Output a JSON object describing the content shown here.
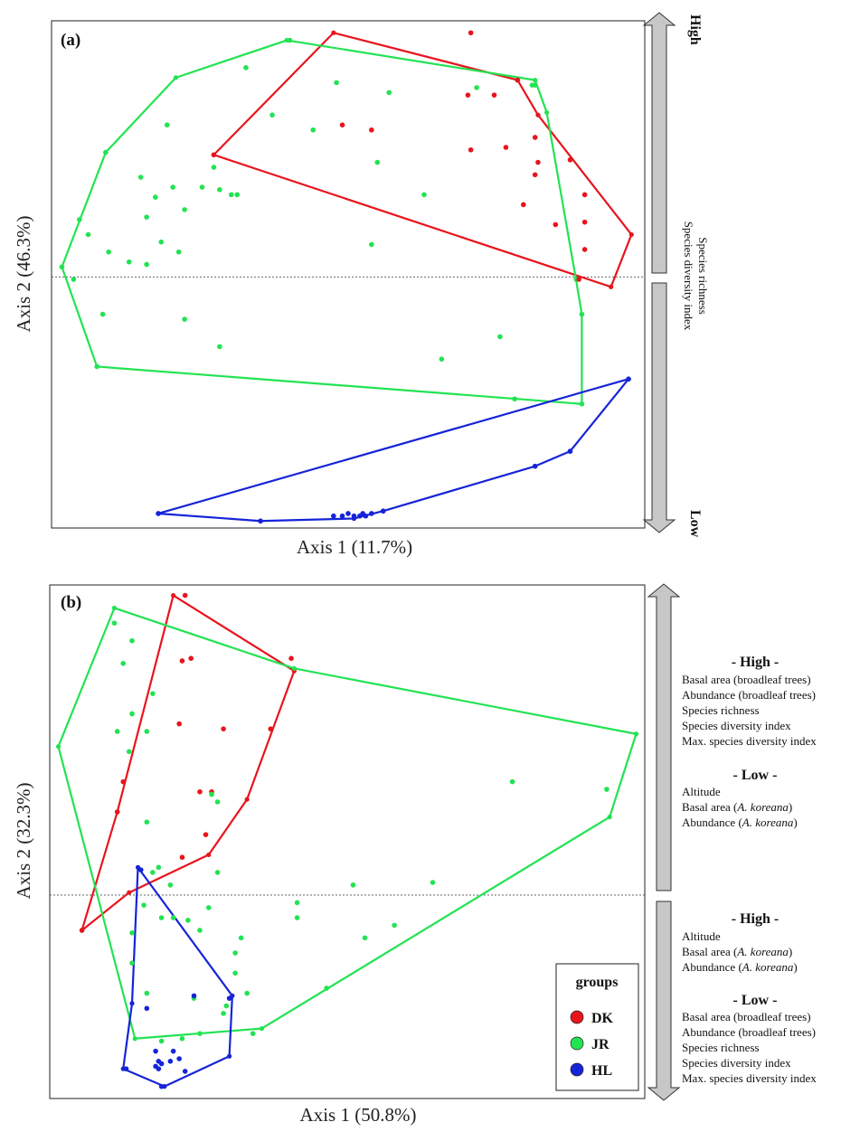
{
  "chart_data": [
    {
      "type": "scatter",
      "panel_label": "(a)",
      "xlabel": "Axis 1 (11.7%)",
      "ylabel": "Axis 2 (46.3%)",
      "xlim": [
        0,
        100
      ],
      "ylim": [
        0,
        100
      ],
      "y_reference_line": 49.5,
      "grid": false,
      "side_panel": {
        "top_label": "High",
        "bottom_label": "Low",
        "text_lines": [
          "Species richness",
          "Species diversity index"
        ]
      },
      "groups": [
        {
          "name": "DK",
          "color": "#e8141c",
          "points": [
            [
              71,
              98.5
            ],
            [
              79,
              89
            ],
            [
              82,
              77.5
            ],
            [
              85.5,
              60
            ],
            [
              89.5,
              49
            ],
            [
              71,
              75
            ],
            [
              77,
              75.5
            ],
            [
              82.5,
              72.5
            ],
            [
              88,
              73
            ],
            [
              90.5,
              60.5
            ],
            [
              82,
              70
            ],
            [
              90.5,
              66
            ],
            [
              80,
              64
            ],
            [
              90.5,
              55
            ],
            [
              49,
              80
            ],
            [
              54,
              79
            ],
            [
              75,
              86
            ],
            [
              70.5,
              86
            ],
            [
              27,
              74
            ]
          ],
          "hull": [
            [
              47.5,
              98.5
            ],
            [
              79,
              89
            ],
            [
              82.5,
              82
            ],
            [
              98.5,
              58
            ],
            [
              95,
              47.5
            ],
            [
              27,
              74
            ]
          ]
        },
        {
          "name": "JR",
          "color": "#22e352",
          "points": [
            [
              40,
              97
            ],
            [
              82,
              88
            ],
            [
              81.5,
              88
            ],
            [
              32.5,
              91.5
            ],
            [
              48,
              88.5
            ],
            [
              57,
              86.5
            ],
            [
              72,
              87.5
            ],
            [
              37,
              82
            ],
            [
              19,
              80
            ],
            [
              44,
              79
            ],
            [
              8.5,
              74.5
            ],
            [
              55,
              72.5
            ],
            [
              27,
              71.5
            ],
            [
              14.5,
              69.5
            ],
            [
              20,
              67.5
            ],
            [
              25,
              67.5
            ],
            [
              28,
              67
            ],
            [
              30,
              66
            ],
            [
              31,
              66
            ],
            [
              63,
              66
            ],
            [
              17,
              65.5
            ],
            [
              22,
              63
            ],
            [
              4,
              61
            ],
            [
              15.5,
              61.5
            ],
            [
              5.5,
              58
            ],
            [
              18,
              56.5
            ],
            [
              9,
              54.5
            ],
            [
              21,
              54.5
            ],
            [
              54,
              56
            ],
            [
              12.5,
              52.5
            ],
            [
              15.5,
              52
            ],
            [
              1,
              51.5
            ],
            [
              3,
              49
            ],
            [
              90,
              42
            ],
            [
              8,
              42
            ],
            [
              22,
              41
            ],
            [
              76,
              37.5
            ],
            [
              28,
              35.5
            ],
            [
              66,
              33
            ],
            [
              7,
              31.5
            ],
            [
              78.5,
              25
            ],
            [
              90,
              24
            ]
          ],
          "hull": [
            [
              39.5,
              97
            ],
            [
              82,
              89
            ],
            [
              84,
              82.5
            ],
            [
              89,
              49
            ],
            [
              90,
              42
            ],
            [
              90,
              24
            ],
            [
              7,
              31.5
            ],
            [
              1,
              51.5
            ],
            [
              8.5,
              74.5
            ],
            [
              20.5,
              89.5
            ]
          ]
        },
        {
          "name": "HL",
          "color": "#1624d8",
          "points": [
            [
              98,
              29
            ],
            [
              88,
              14.5
            ],
            [
              82,
              11.5
            ],
            [
              56,
              2.5
            ],
            [
              51,
              1.5
            ],
            [
              52,
              1.5
            ],
            [
              53,
              1.5
            ],
            [
              52.5,
              2
            ],
            [
              54,
              2
            ],
            [
              49,
              1.5
            ],
            [
              50,
              2
            ],
            [
              47.5,
              1.5
            ],
            [
              35,
              0.5
            ],
            [
              17.5,
              2
            ]
          ],
          "hull": [
            [
              98,
              29
            ],
            [
              88,
              14.5
            ],
            [
              82,
              11.5
            ],
            [
              56,
              2.5
            ],
            [
              51,
              1
            ],
            [
              35,
              0.5
            ],
            [
              17.5,
              2
            ]
          ]
        }
      ]
    },
    {
      "type": "scatter",
      "panel_label": "(b)",
      "xlabel": "Axis 1 (50.8%)",
      "ylabel": "Axis 2 (32.3%)",
      "xlim": [
        0,
        100
      ],
      "ylim": [
        0,
        100
      ],
      "y_reference_line": 39.5,
      "grid": false,
      "side_panel": {
        "upper_high_heading": "- High -",
        "upper_high_lines": [
          "Basal area (broadleaf trees)",
          "Abundance (broadleaf trees)",
          "Species richness",
          "Species diversity index",
          "Max. species diversity index"
        ],
        "upper_low_heading": "- Low -",
        "upper_low_lines": [
          "Altitude",
          "Basal area (A. koreana)",
          "Abundance (A. koreana)"
        ],
        "lower_high_heading": "- High -",
        "lower_high_lines": [
          "Altitude",
          "Basal area (A. koreana)",
          "Abundance (A. koreana)"
        ],
        "lower_low_heading": "- Low -",
        "lower_low_lines": [
          "Basal area (broadleaf trees)",
          "Abundance (broadleaf trees)",
          "Species richness",
          "Species diversity index",
          "Max. species diversity index"
        ]
      },
      "legend": {
        "title": "groups",
        "position": "bottom-right"
      },
      "groups": [
        {
          "name": "DK",
          "color": "#e8141c",
          "points": [
            [
              22.5,
              99
            ],
            [
              40.5,
              86.5
            ],
            [
              23.5,
              86.5
            ],
            [
              22,
              86
            ],
            [
              21.5,
              73.5
            ],
            [
              29,
              72.5
            ],
            [
              37,
              72.5
            ],
            [
              12,
              62
            ],
            [
              25,
              60
            ],
            [
              27,
              60
            ],
            [
              11,
              56
            ],
            [
              26,
              51.5
            ],
            [
              22,
              47
            ],
            [
              5,
              32.5
            ]
          ],
          "hull": [
            [
              20.5,
              99
            ],
            [
              41,
              84
            ],
            [
              33,
              58.5
            ],
            [
              26.5,
              47.5
            ],
            [
              13,
              40
            ],
            [
              5,
              32.5
            ],
            [
              11,
              56
            ]
          ]
        },
        {
          "name": "JR",
          "color": "#22e352",
          "points": [
            [
              10.5,
              93.5
            ],
            [
              13.5,
              90
            ],
            [
              12,
              85.5
            ],
            [
              17,
              79.5
            ],
            [
              13.5,
              75.5
            ],
            [
              11,
              72
            ],
            [
              16,
              72
            ],
            [
              13,
              68
            ],
            [
              78,
              62
            ],
            [
              94,
              60.5
            ],
            [
              27,
              59.5
            ],
            [
              28,
              58
            ],
            [
              16,
              54
            ],
            [
              18,
              45
            ],
            [
              17,
              44
            ],
            [
              28,
              44
            ],
            [
              20,
              41.5
            ],
            [
              51,
              41.5
            ],
            [
              64.5,
              42
            ],
            [
              41.5,
              38
            ],
            [
              15.5,
              37.5
            ],
            [
              20.5,
              35
            ],
            [
              23,
              34.5
            ],
            [
              26.5,
              37
            ],
            [
              25,
              32.5
            ],
            [
              18.5,
              35
            ],
            [
              41.5,
              35
            ],
            [
              58,
              33.5
            ],
            [
              13.5,
              32
            ],
            [
              20.5,
              35
            ],
            [
              32,
              31
            ],
            [
              53,
              31
            ],
            [
              31,
              28
            ],
            [
              13.5,
              26
            ],
            [
              31,
              24
            ],
            [
              46.5,
              21
            ],
            [
              16,
              20
            ],
            [
              24,
              19
            ],
            [
              33,
              20
            ],
            [
              29,
              16
            ],
            [
              29.5,
              17.5
            ],
            [
              25,
              12
            ],
            [
              34,
              12
            ],
            [
              22,
              11
            ],
            [
              18.5,
              10.5
            ]
          ],
          "hull": [
            [
              10.5,
              96.5
            ],
            [
              41,
              84.5
            ],
            [
              99,
              71.5
            ],
            [
              94.5,
              55
            ],
            [
              35.5,
              13
            ],
            [
              14,
              11
            ],
            [
              1,
              69
            ]
          ]
        },
        {
          "name": "HL",
          "color": "#1624d8",
          "points": [
            [
              15,
              44.5
            ],
            [
              30,
              19
            ],
            [
              24,
              19.5
            ],
            [
              16,
              17
            ],
            [
              17.5,
              8.5
            ],
            [
              20.5,
              8.5
            ],
            [
              21.5,
              7
            ],
            [
              20,
              6.5
            ],
            [
              18,
              6.5
            ],
            [
              18.5,
              6
            ],
            [
              17.5,
              5.5
            ],
            [
              18,
              5
            ],
            [
              22.5,
              4.5
            ],
            [
              12.5,
              5
            ],
            [
              18.5,
              1.5
            ]
          ],
          "hull": [
            [
              14.5,
              45
            ],
            [
              30.5,
              19.5
            ],
            [
              30,
              7.5
            ],
            [
              19,
              1.5
            ],
            [
              12,
              5
            ],
            [
              13.5,
              18
            ]
          ]
        }
      ]
    }
  ]
}
